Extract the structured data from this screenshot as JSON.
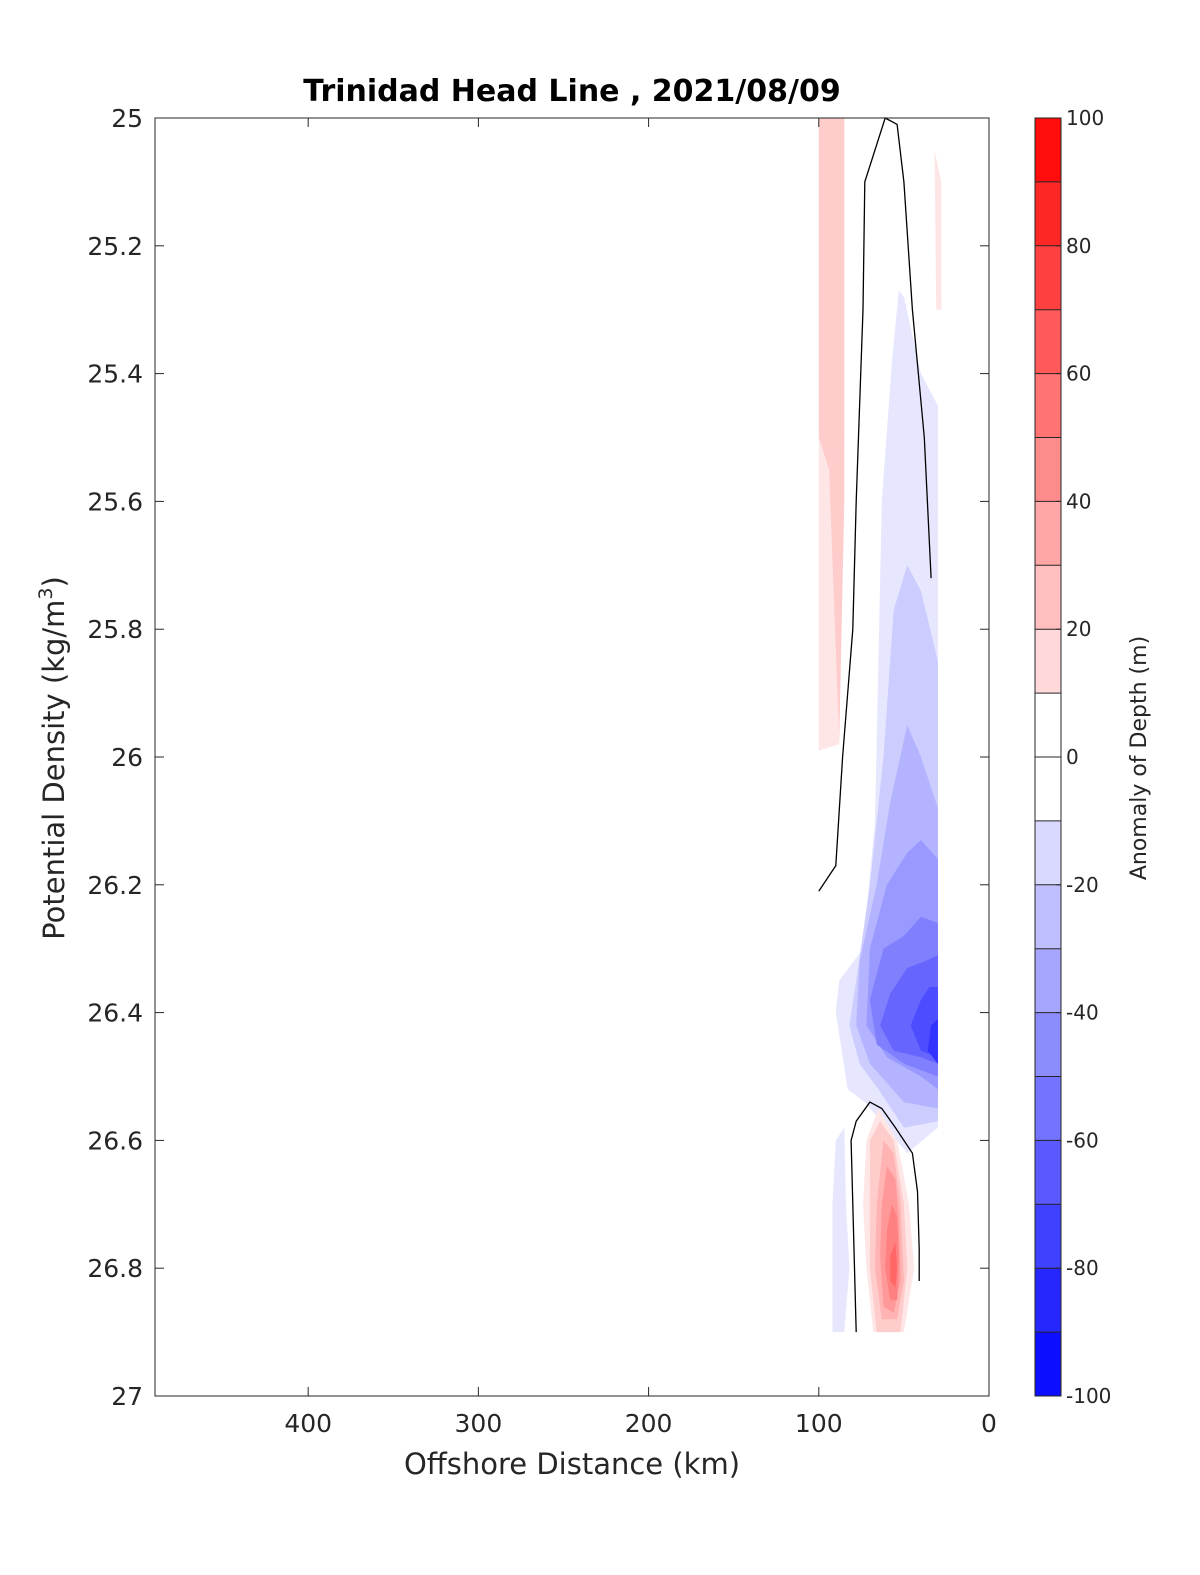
{
  "chart_data": {
    "type": "contour",
    "title": "Trinidad Head Line , 2021/08/09",
    "xlabel": "Offshore Distance (km)",
    "ylabel_main": "Potential Density (kg/m",
    "ylabel_sup": "3",
    "ylabel_end": ")",
    "xlim": [
      490,
      0
    ],
    "x_reversed": true,
    "ylim": [
      25,
      27
    ],
    "y_reversed": true,
    "xticks": [
      400,
      300,
      200,
      100,
      0
    ],
    "xtick_labels": [
      "400",
      "300",
      "200",
      "100",
      "0"
    ],
    "yticks": [
      25,
      25.2,
      25.4,
      25.6,
      25.8,
      26,
      26.2,
      26.4,
      26.6,
      26.8,
      27
    ],
    "ytick_labels": [
      "25",
      "25.2",
      "25.4",
      "25.6",
      "25.8",
      "26",
      "26.2",
      "26.4",
      "26.6",
      "26.8",
      "27"
    ],
    "grid": false,
    "colorbar": {
      "label": "Anomaly of Depth (m)",
      "range": [
        -100,
        100
      ],
      "step": 10,
      "ticks": [
        100,
        80,
        60,
        40,
        20,
        0,
        -20,
        -40,
        -60,
        -80,
        -100
      ],
      "tick_labels": [
        "100",
        "80",
        "60",
        "40",
        "20",
        "0",
        "-20",
        "-40",
        "-60",
        "-80",
        "-100"
      ],
      "color_min": "#0000ff",
      "color_zero": "#ffffff",
      "color_max": "#ff0000"
    },
    "regions": [
      {
        "level": 10,
        "points": [
          [
            100,
            25
          ],
          [
            90,
            25
          ],
          [
            90,
            25.3
          ],
          [
            94,
            25.55
          ],
          [
            100,
            25.5
          ]
        ]
      },
      {
        "level": 10,
        "points": [
          [
            32,
            25.05
          ],
          [
            28,
            25.1
          ],
          [
            28,
            25.3
          ],
          [
            31,
            25.3
          ]
        ]
      },
      {
        "level": 10,
        "points": [
          [
            100,
            25.5
          ],
          [
            94,
            25.55
          ],
          [
            88,
            25.98
          ],
          [
            100,
            25.99
          ]
        ]
      },
      {
        "level": 20,
        "points": [
          [
            100,
            25
          ],
          [
            85,
            25
          ],
          [
            85,
            25.5
          ],
          [
            90,
            25.3
          ],
          [
            90,
            25
          ]
        ]
      },
      {
        "level": 20,
        "points": [
          [
            100,
            25
          ],
          [
            85,
            25
          ],
          [
            85,
            25.5
          ],
          [
            94,
            25.55
          ],
          [
            100,
            25.5
          ]
        ]
      },
      {
        "level": 20,
        "points": [
          [
            94,
            25.55
          ],
          [
            85,
            25.5
          ],
          [
            85,
            25.6
          ],
          [
            88,
            25.98
          ],
          [
            94,
            25.55
          ]
        ]
      },
      {
        "level": -10,
        "points": [
          [
            53,
            25.27
          ],
          [
            57,
            25.38
          ],
          [
            63,
            25.6
          ],
          [
            67,
            26.1
          ],
          [
            74,
            26.3
          ],
          [
            88,
            26.35
          ],
          [
            90,
            26.4
          ],
          [
            83,
            26.52
          ],
          [
            73,
            26.54
          ],
          [
            48,
            26.62
          ],
          [
            30,
            26.58
          ],
          [
            30,
            25.45
          ],
          [
            40,
            25.4
          ],
          [
            50,
            25.28
          ]
        ]
      },
      {
        "level": -20,
        "points": [
          [
            48,
            25.7
          ],
          [
            56,
            25.77
          ],
          [
            62,
            26.0
          ],
          [
            70,
            26.2
          ],
          [
            78,
            26.35
          ],
          [
            82,
            26.42
          ],
          [
            76,
            26.48
          ],
          [
            65,
            26.52
          ],
          [
            50,
            26.58
          ],
          [
            30,
            26.57
          ],
          [
            30,
            25.85
          ],
          [
            40,
            25.74
          ]
        ]
      },
      {
        "level": -30,
        "points": [
          [
            48,
            25.95
          ],
          [
            58,
            26.07
          ],
          [
            66,
            26.2
          ],
          [
            76,
            26.32
          ],
          [
            78,
            26.42
          ],
          [
            70,
            26.48
          ],
          [
            50,
            26.54
          ],
          [
            30,
            26.55
          ],
          [
            30,
            26.08
          ],
          [
            40,
            26.0
          ]
        ]
      },
      {
        "level": -40,
        "points": [
          [
            48,
            26.15
          ],
          [
            60,
            26.2
          ],
          [
            70,
            26.3
          ],
          [
            72,
            26.42
          ],
          [
            60,
            26.47
          ],
          [
            40,
            26.5
          ],
          [
            30,
            26.52
          ],
          [
            30,
            26.16
          ],
          [
            40,
            26.13
          ]
        ]
      },
      {
        "level": -50,
        "points": [
          [
            50,
            26.28
          ],
          [
            62,
            26.3
          ],
          [
            70,
            26.38
          ],
          [
            66,
            26.45
          ],
          [
            50,
            26.48
          ],
          [
            30,
            26.5
          ],
          [
            30,
            26.26
          ],
          [
            40,
            26.25
          ]
        ]
      },
      {
        "level": -60,
        "points": [
          [
            48,
            26.33
          ],
          [
            58,
            26.37
          ],
          [
            64,
            26.42
          ],
          [
            56,
            26.46
          ],
          [
            40,
            26.47
          ],
          [
            30,
            26.48
          ],
          [
            30,
            26.31
          ],
          [
            38,
            26.32
          ]
        ]
      },
      {
        "level": -70,
        "points": [
          [
            40,
            26.38
          ],
          [
            46,
            26.42
          ],
          [
            40,
            26.46
          ],
          [
            30,
            26.47
          ],
          [
            30,
            26.36
          ],
          [
            35,
            26.36
          ]
        ]
      },
      {
        "level": -80,
        "points": [
          [
            34,
            26.42
          ],
          [
            36,
            26.46
          ],
          [
            30,
            26.48
          ],
          [
            30,
            26.41
          ]
        ]
      },
      {
        "level": -10,
        "points": [
          [
            90,
            26.6
          ],
          [
            85,
            26.58
          ],
          [
            84,
            26.7
          ],
          [
            82,
            26.8
          ],
          [
            85,
            26.9
          ],
          [
            92,
            26.9
          ],
          [
            92,
            26.8
          ],
          [
            92,
            26.7
          ]
        ]
      },
      {
        "level": 10,
        "points": [
          [
            65,
            26.55
          ],
          [
            54,
            26.6
          ],
          [
            47,
            26.7
          ],
          [
            44,
            26.8
          ],
          [
            50,
            26.9
          ],
          [
            68,
            26.9
          ],
          [
            72,
            26.8
          ],
          [
            74,
            26.7
          ],
          [
            72,
            26.6
          ]
        ]
      },
      {
        "level": 20,
        "points": [
          [
            64,
            26.57
          ],
          [
            56,
            26.6
          ],
          [
            50,
            26.7
          ],
          [
            48,
            26.8
          ],
          [
            52,
            26.9
          ],
          [
            66,
            26.9
          ],
          [
            70,
            26.8
          ],
          [
            70,
            26.7
          ],
          [
            70,
            26.6
          ]
        ]
      },
      {
        "level": 30,
        "points": [
          [
            62,
            26.6
          ],
          [
            56,
            26.62
          ],
          [
            52,
            26.7
          ],
          [
            50,
            26.82
          ],
          [
            54,
            26.88
          ],
          [
            63,
            26.88
          ],
          [
            67,
            26.8
          ],
          [
            66,
            26.7
          ]
        ]
      },
      {
        "level": 40,
        "points": [
          [
            60,
            26.64
          ],
          [
            55,
            26.66
          ],
          [
            53,
            26.72
          ],
          [
            52,
            26.82
          ],
          [
            56,
            26.87
          ],
          [
            62,
            26.86
          ],
          [
            64,
            26.78
          ],
          [
            63,
            26.7
          ]
        ]
      },
      {
        "level": 50,
        "points": [
          [
            57,
            26.7
          ],
          [
            54,
            26.72
          ],
          [
            53,
            26.78
          ],
          [
            54,
            26.85
          ],
          [
            58,
            26.85
          ],
          [
            61,
            26.8
          ],
          [
            60,
            26.74
          ]
        ]
      },
      {
        "level": 60,
        "points": [
          [
            55,
            26.76
          ],
          [
            54,
            26.8
          ],
          [
            55,
            26.83
          ],
          [
            58,
            26.82
          ],
          [
            58,
            26.78
          ]
        ]
      }
    ],
    "zero_contours": [
      {
        "points": [
          [
            100,
            26.21
          ],
          [
            90,
            26.17
          ],
          [
            86,
            26.0
          ],
          [
            80,
            25.8
          ],
          [
            78,
            25.6
          ],
          [
            74,
            25.3
          ],
          [
            73,
            25.1
          ],
          [
            61,
            25.0
          ],
          [
            54,
            25.01
          ],
          [
            50,
            25.1
          ],
          [
            45,
            25.3
          ],
          [
            38,
            25.5
          ],
          [
            34,
            25.72
          ]
        ]
      },
      {
        "points": [
          [
            78,
            26.9
          ],
          [
            79,
            26.8
          ],
          [
            81,
            26.6
          ],
          [
            78,
            26.57
          ],
          [
            70,
            26.54
          ],
          [
            63,
            26.55
          ],
          [
            55,
            26.58
          ],
          [
            45,
            26.62
          ],
          [
            42,
            26.68
          ],
          [
            41,
            26.77
          ],
          [
            41,
            26.82
          ]
        ]
      }
    ]
  }
}
